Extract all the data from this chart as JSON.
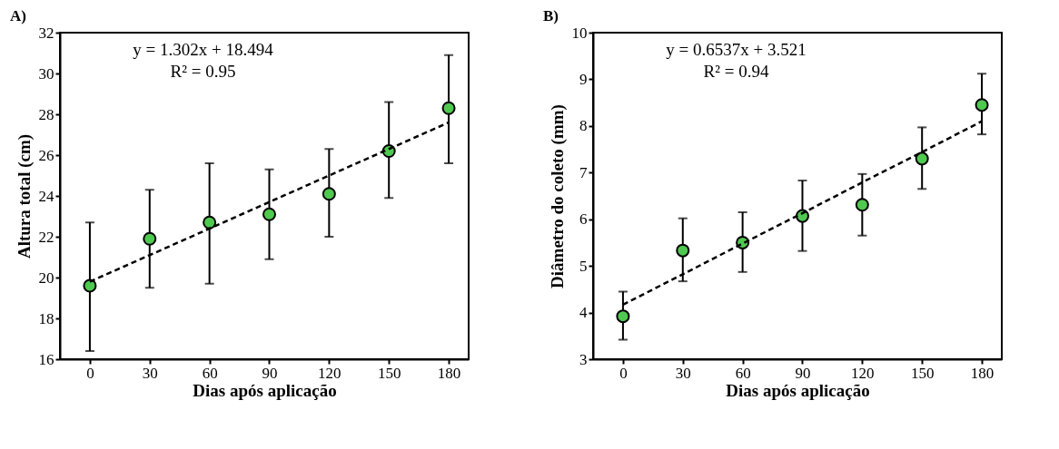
{
  "chart_data": [
    {
      "type": "scatter",
      "title": "A)",
      "xlabel": "Dias após aplicação",
      "ylabel": "Altura total (cm)",
      "x": [
        0,
        30,
        60,
        90,
        120,
        150,
        180
      ],
      "xlim": [
        -15,
        190
      ],
      "xticks": [
        0,
        30,
        60,
        90,
        120,
        150,
        180
      ],
      "ylim": [
        16,
        32
      ],
      "yticks": [
        16,
        18,
        20,
        22,
        24,
        26,
        28,
        30,
        32
      ],
      "grid": false,
      "annotations": [
        "y = 1.302x + 18.494",
        "R² = 0.95"
      ],
      "series": [
        {
          "color": "#4fc94f",
          "marker": "circle",
          "values": [
            19.6,
            21.9,
            22.7,
            23.1,
            24.1,
            26.2,
            28.3
          ],
          "errors": [
            [
              16.4,
              22.7
            ],
            [
              19.5,
              24.3
            ],
            [
              19.7,
              25.6
            ],
            [
              20.9,
              25.3
            ],
            [
              22.0,
              26.3
            ],
            [
              23.9,
              28.6
            ],
            [
              25.6,
              30.9
            ]
          ]
        },
        {
          "type": "line",
          "color": "#000000",
          "line_style": "dashed",
          "marker": "none",
          "values": [
            19.8,
            21.1,
            22.4,
            23.7,
            25.0,
            26.3,
            27.6
          ]
        }
      ]
    },
    {
      "type": "scatter",
      "title": "B)",
      "xlabel": "Dias após aplicação",
      "ylabel": "Diâmetro do coleto (mm)",
      "x": [
        0,
        30,
        60,
        90,
        120,
        150,
        180
      ],
      "xlim": [
        -15,
        190
      ],
      "xticks": [
        0,
        30,
        60,
        90,
        120,
        150,
        180
      ],
      "ylim": [
        3,
        10
      ],
      "yticks": [
        3,
        4,
        5,
        6,
        7,
        8,
        9,
        10
      ],
      "grid": false,
      "annotations": [
        "y = 0.6537x + 3.521",
        "R² = 0.94"
      ],
      "series": [
        {
          "color": "#4fc94f",
          "marker": "circle",
          "values": [
            3.92,
            5.33,
            5.5,
            6.07,
            6.31,
            7.3,
            8.45
          ],
          "errors": [
            [
              3.42,
              4.45
            ],
            [
              4.67,
              6.02
            ],
            [
              4.87,
              6.15
            ],
            [
              5.32,
              6.83
            ],
            [
              5.65,
              6.97
            ],
            [
              6.65,
              7.97
            ],
            [
              7.82,
              9.12
            ]
          ]
        },
        {
          "type": "line",
          "color": "#000000",
          "line_style": "dashed",
          "marker": "none",
          "values": [
            4.17,
            4.82,
            5.48,
            6.13,
            6.79,
            7.44,
            8.1
          ]
        }
      ]
    }
  ]
}
